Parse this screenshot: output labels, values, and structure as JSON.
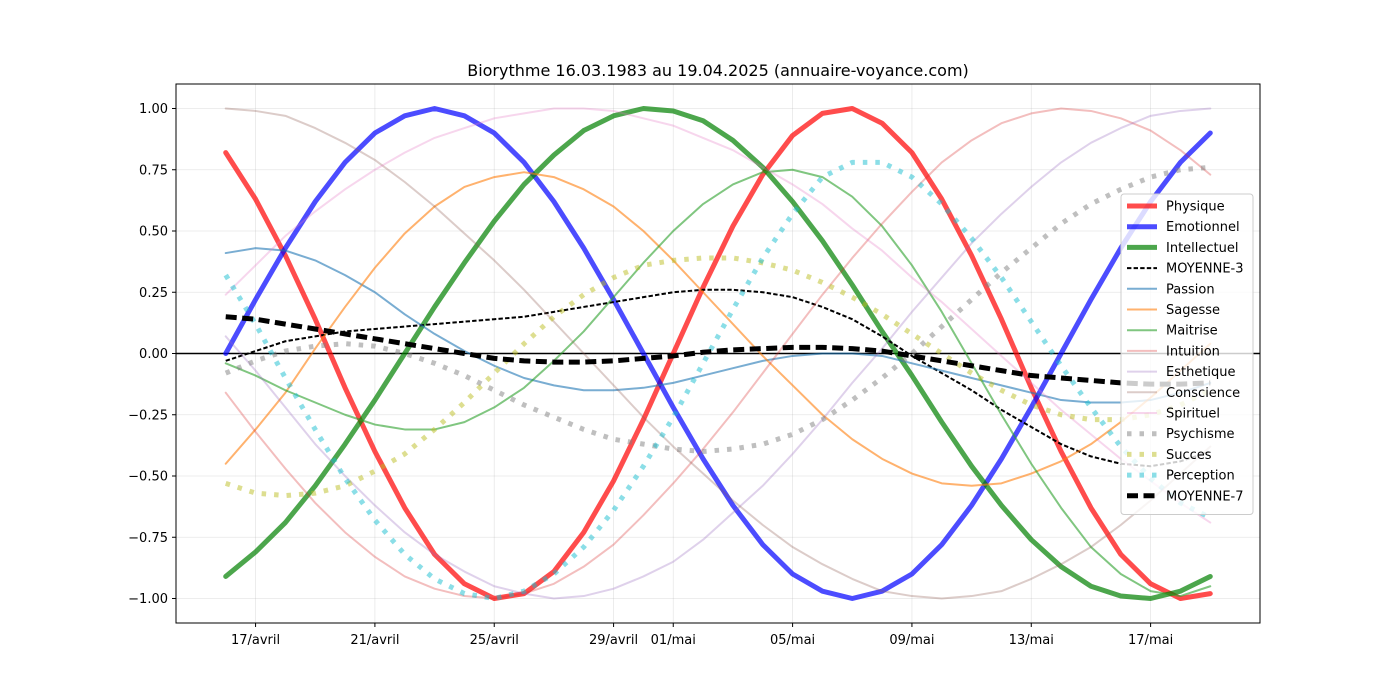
{
  "chart_data": {
    "type": "line",
    "title": "Biorythme 16.03.1983 au 19.04.2025 (annuaire-voyance.com)",
    "xlabel": "",
    "ylabel": "",
    "x": [
      "2025-04-16",
      "2025-04-17",
      "2025-04-18",
      "2025-04-19",
      "2025-04-20",
      "2025-04-21",
      "2025-04-22",
      "2025-04-23",
      "2025-04-24",
      "2025-04-25",
      "2025-04-26",
      "2025-04-27",
      "2025-04-28",
      "2025-04-29",
      "2025-04-30",
      "2025-05-01",
      "2025-05-02",
      "2025-05-03",
      "2025-05-04",
      "2025-05-05",
      "2025-05-06",
      "2025-05-07",
      "2025-05-08",
      "2025-05-09",
      "2025-05-10",
      "2025-05-11",
      "2025-05-12",
      "2025-05-13",
      "2025-05-14",
      "2025-05-15",
      "2025-05-16",
      "2025-05-17",
      "2025-05-18",
      "2025-05-19"
    ],
    "xticks": [
      {
        "date": "2025-04-17",
        "label": "17/avril"
      },
      {
        "date": "2025-04-21",
        "label": "21/avril"
      },
      {
        "date": "2025-04-25",
        "label": "25/avril"
      },
      {
        "date": "2025-04-29",
        "label": "29/avril"
      },
      {
        "date": "2025-05-01",
        "label": "01/mai"
      },
      {
        "date": "2025-05-05",
        "label": "05/mai"
      },
      {
        "date": "2025-05-09",
        "label": "09/mai"
      },
      {
        "date": "2025-05-13",
        "label": "13/mai"
      },
      {
        "date": "2025-05-17",
        "label": "17/mai"
      }
    ],
    "yticks": [
      -1.0,
      -0.75,
      -0.5,
      -0.25,
      0.0,
      0.25,
      0.5,
      0.75,
      1.0
    ],
    "ytick_labels": [
      "−1.00",
      "−0.75",
      "−0.50",
      "−0.25",
      "0.00",
      "0.25",
      "0.50",
      "0.75",
      "1.00"
    ],
    "xlim": [
      "2025-04-14T08:00",
      "2025-05-20T16:00"
    ],
    "ylim": [
      -1.1,
      1.1
    ],
    "grid": true,
    "zero_line": true,
    "legend_position": "right",
    "series": [
      {
        "name": "Physique",
        "color": "#ff0000",
        "alpha": 0.7,
        "width": 5,
        "dash": "solid",
        "values": [
          0.82,
          0.63,
          0.4,
          0.14,
          -0.14,
          -0.4,
          -0.63,
          -0.82,
          -0.94,
          -1.0,
          -0.98,
          -0.89,
          -0.73,
          -0.52,
          -0.27,
          0.0,
          0.27,
          0.52,
          0.73,
          0.89,
          0.98,
          1.0,
          0.94,
          0.82,
          0.63,
          0.4,
          0.14,
          -0.14,
          -0.4,
          -0.63,
          -0.82,
          -0.94,
          -1.0,
          -0.98
        ]
      },
      {
        "name": "Emotionnel",
        "color": "#0000ff",
        "alpha": 0.7,
        "width": 5,
        "dash": "solid",
        "values": [
          0.0,
          0.22,
          0.43,
          0.62,
          0.78,
          0.9,
          0.97,
          1.0,
          0.97,
          0.9,
          0.78,
          0.62,
          0.43,
          0.22,
          0.0,
          -0.22,
          -0.43,
          -0.62,
          -0.78,
          -0.9,
          -0.97,
          -1.0,
          -0.97,
          -0.9,
          -0.78,
          -0.62,
          -0.43,
          -0.22,
          0.0,
          0.22,
          0.43,
          0.62,
          0.78,
          0.9
        ]
      },
      {
        "name": "Intellectuel",
        "color": "#008000",
        "alpha": 0.7,
        "width": 5,
        "dash": "solid",
        "values": [
          -0.91,
          -0.81,
          -0.69,
          -0.54,
          -0.37,
          -0.19,
          0.0,
          0.19,
          0.37,
          0.54,
          0.69,
          0.81,
          0.91,
          0.97,
          1.0,
          0.99,
          0.95,
          0.87,
          0.76,
          0.62,
          0.46,
          0.28,
          0.09,
          -0.09,
          -0.28,
          -0.46,
          -0.62,
          -0.76,
          -0.87,
          -0.95,
          -0.99,
          -1.0,
          -0.97,
          -0.91
        ]
      },
      {
        "name": "MOYENNE-3",
        "color": "#000000",
        "alpha": 1.0,
        "width": 2,
        "dash": "dashed",
        "values": [
          -0.03,
          0.01,
          0.05,
          0.07,
          0.09,
          0.1,
          0.11,
          0.12,
          0.13,
          0.14,
          0.15,
          0.17,
          0.19,
          0.21,
          0.23,
          0.25,
          0.26,
          0.26,
          0.25,
          0.23,
          0.19,
          0.14,
          0.07,
          -0.01,
          -0.08,
          -0.15,
          -0.23,
          -0.3,
          -0.37,
          -0.42,
          -0.45,
          -0.46,
          -0.44,
          -0.4
        ]
      },
      {
        "name": "Passion",
        "color": "#1f77b4",
        "alpha": 0.6,
        "width": 2,
        "dash": "solid",
        "values": [
          0.41,
          0.43,
          0.42,
          0.38,
          0.32,
          0.25,
          0.16,
          0.08,
          0.01,
          -0.05,
          -0.1,
          -0.13,
          -0.15,
          -0.15,
          -0.14,
          -0.12,
          -0.09,
          -0.06,
          -0.03,
          -0.01,
          0.0,
          0.0,
          -0.01,
          -0.04,
          -0.07,
          -0.1,
          -0.13,
          -0.16,
          -0.19,
          -0.2,
          -0.2,
          -0.19,
          -0.16,
          -0.12
        ]
      },
      {
        "name": "Sagesse",
        "color": "#ff7f0e",
        "alpha": 0.6,
        "width": 2,
        "dash": "solid",
        "values": [
          -0.45,
          -0.31,
          -0.16,
          0.02,
          0.19,
          0.35,
          0.49,
          0.6,
          0.68,
          0.72,
          0.74,
          0.72,
          0.67,
          0.6,
          0.5,
          0.38,
          0.25,
          0.12,
          -0.01,
          -0.13,
          -0.25,
          -0.35,
          -0.43,
          -0.49,
          -0.53,
          -0.54,
          -0.53,
          -0.49,
          -0.44,
          -0.37,
          -0.28,
          -0.18,
          -0.07,
          0.04
        ]
      },
      {
        "name": "Maitrise",
        "color": "#2ca02c",
        "alpha": 0.6,
        "width": 2,
        "dash": "solid",
        "values": [
          -0.04,
          -0.09,
          -0.15,
          -0.2,
          -0.25,
          -0.29,
          -0.31,
          -0.31,
          -0.28,
          -0.22,
          -0.14,
          -0.03,
          0.09,
          0.23,
          0.37,
          0.5,
          0.61,
          0.69,
          0.74,
          0.75,
          0.72,
          0.64,
          0.52,
          0.36,
          0.17,
          -0.04,
          -0.25,
          -0.45,
          -0.63,
          -0.79,
          -0.9,
          -0.97,
          -0.99,
          -0.95
        ]
      },
      {
        "name": "Intuition",
        "color": "#d62728",
        "alpha": 0.3,
        "width": 2,
        "dash": "solid",
        "values": [
          -0.16,
          -0.32,
          -0.47,
          -0.61,
          -0.73,
          -0.83,
          -0.91,
          -0.96,
          -0.99,
          -1.0,
          -0.98,
          -0.94,
          -0.87,
          -0.78,
          -0.66,
          -0.53,
          -0.39,
          -0.24,
          -0.08,
          0.08,
          0.24,
          0.39,
          0.53,
          0.66,
          0.78,
          0.87,
          0.94,
          0.98,
          1.0,
          0.99,
          0.96,
          0.91,
          0.83,
          0.73
        ]
      },
      {
        "name": "Esthetique",
        "color": "#9467bd",
        "alpha": 0.3,
        "width": 2,
        "dash": "solid",
        "values": [
          0.07,
          -0.07,
          -0.22,
          -0.37,
          -0.5,
          -0.62,
          -0.73,
          -0.82,
          -0.89,
          -0.95,
          -0.98,
          -1.0,
          -0.99,
          -0.96,
          -0.91,
          -0.85,
          -0.76,
          -0.65,
          -0.54,
          -0.41,
          -0.27,
          -0.12,
          0.02,
          0.17,
          0.31,
          0.45,
          0.57,
          0.68,
          0.78,
          0.86,
          0.92,
          0.97,
          0.99,
          1.0
        ]
      },
      {
        "name": "Conscience",
        "color": "#8c564b",
        "alpha": 0.3,
        "width": 2,
        "dash": "solid",
        "values": [
          1.0,
          0.99,
          0.97,
          0.92,
          0.86,
          0.79,
          0.7,
          0.6,
          0.49,
          0.38,
          0.26,
          0.13,
          0.0,
          -0.13,
          -0.26,
          -0.38,
          -0.49,
          -0.6,
          -0.7,
          -0.79,
          -0.86,
          -0.92,
          -0.97,
          -0.99,
          -1.0,
          -0.99,
          -0.97,
          -0.92,
          -0.86,
          -0.79,
          -0.7,
          -0.6,
          -0.49,
          -0.38
        ]
      },
      {
        "name": "Spirituel",
        "color": "#e377c2",
        "alpha": 0.3,
        "width": 2,
        "dash": "solid",
        "values": [
          0.24,
          0.36,
          0.48,
          0.58,
          0.67,
          0.75,
          0.82,
          0.88,
          0.92,
          0.96,
          0.98,
          1.0,
          1.0,
          0.99,
          0.96,
          0.93,
          0.88,
          0.83,
          0.76,
          0.69,
          0.61,
          0.51,
          0.42,
          0.31,
          0.21,
          0.1,
          -0.01,
          -0.12,
          -0.23,
          -0.33,
          -0.43,
          -0.52,
          -0.61,
          -0.69
        ]
      },
      {
        "name": "Psychisme",
        "color": "#7f7f7f",
        "alpha": 0.5,
        "width": 5,
        "dash": "dotted",
        "values": [
          -0.08,
          -0.03,
          0.01,
          0.03,
          0.04,
          0.03,
          0.0,
          -0.04,
          -0.09,
          -0.15,
          -0.21,
          -0.26,
          -0.31,
          -0.35,
          -0.37,
          -0.39,
          -0.4,
          -0.39,
          -0.37,
          -0.33,
          -0.27,
          -0.19,
          -0.1,
          0.0,
          0.11,
          0.22,
          0.33,
          0.43,
          0.53,
          0.61,
          0.67,
          0.72,
          0.75,
          0.76
        ]
      },
      {
        "name": "Succes",
        "color": "#bcbd22",
        "alpha": 0.5,
        "width": 5,
        "dash": "dotted",
        "values": [
          -0.53,
          -0.57,
          -0.58,
          -0.57,
          -0.54,
          -0.48,
          -0.41,
          -0.31,
          -0.2,
          -0.08,
          0.04,
          0.15,
          0.24,
          0.31,
          0.36,
          0.38,
          0.39,
          0.39,
          0.37,
          0.34,
          0.29,
          0.23,
          0.16,
          0.08,
          0.0,
          -0.08,
          -0.15,
          -0.21,
          -0.25,
          -0.27,
          -0.27,
          -0.25,
          -0.21,
          -0.15
        ]
      },
      {
        "name": "Perception",
        "color": "#17becf",
        "alpha": 0.5,
        "width": 5,
        "dash": "dotted",
        "values": [
          0.32,
          0.12,
          -0.1,
          -0.31,
          -0.51,
          -0.68,
          -0.82,
          -0.92,
          -0.98,
          -1.0,
          -0.97,
          -0.9,
          -0.79,
          -0.64,
          -0.46,
          -0.26,
          -0.04,
          0.18,
          0.39,
          0.57,
          0.72,
          0.78,
          0.78,
          0.72,
          0.61,
          0.47,
          0.31,
          0.13,
          -0.05,
          -0.22,
          -0.38,
          -0.51,
          -0.61,
          -0.67
        ]
      },
      {
        "name": "MOYENNE-7",
        "color": "#000000",
        "alpha": 1.0,
        "width": 5,
        "dash": "dashed",
        "values": [
          0.15,
          0.14,
          0.12,
          0.1,
          0.08,
          0.06,
          0.04,
          0.02,
          0.0,
          -0.02,
          -0.03,
          -0.035,
          -0.035,
          -0.03,
          -0.02,
          -0.01,
          0.005,
          0.015,
          0.02,
          0.025,
          0.025,
          0.02,
          0.01,
          -0.01,
          -0.03,
          -0.05,
          -0.07,
          -0.09,
          -0.1,
          -0.11,
          -0.12,
          -0.125,
          -0.125,
          -0.12
        ]
      }
    ]
  }
}
